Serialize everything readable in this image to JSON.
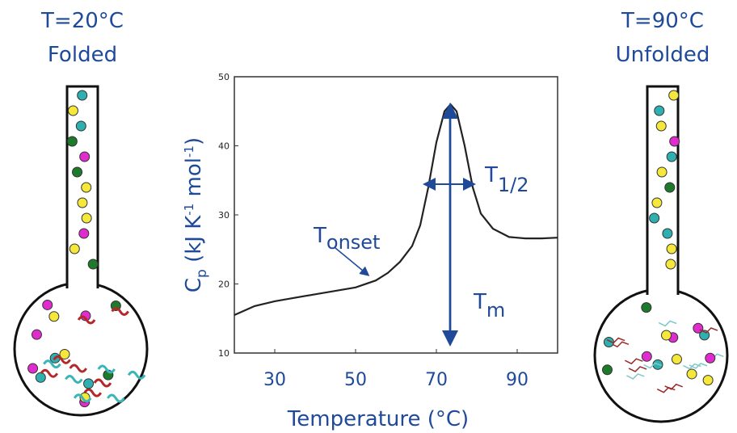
{
  "chart_data": {
    "type": "line",
    "x_label": "Temperature (°C)",
    "y_label": [
      "C",
      "p",
      " (kJ K",
      "-1",
      " mol",
      "-1",
      ")"
    ],
    "x": [
      20,
      25,
      30,
      35,
      40,
      45,
      50,
      55,
      58,
      61,
      64,
      66,
      68,
      70,
      72,
      73.5,
      75,
      77,
      79,
      81,
      84,
      88,
      92,
      96,
      100
    ],
    "values": [
      15.5,
      16.8,
      17.5,
      18,
      18.5,
      19,
      19.5,
      20.5,
      21.6,
      23.2,
      25.5,
      28.5,
      34,
      40.5,
      45,
      46,
      45,
      40,
      34,
      30.2,
      28,
      26.8,
      26.6,
      26.6,
      26.7
    ],
    "color": "#222222",
    "xlim": [
      20,
      100
    ],
    "xticks": [
      30,
      50,
      70,
      90
    ],
    "ylim": [
      10,
      50
    ],
    "yticks": [
      10,
      20,
      30,
      40,
      50
    ],
    "annotations": {
      "onset": [
        "T",
        "onset"
      ],
      "half": [
        "T",
        "1/2"
      ],
      "tm": [
        "T",
        "m"
      ]
    }
  },
  "flasks": [
    {
      "temperature": "T=20°C",
      "state": "Folded"
    },
    {
      "temperature": "T=90°C",
      "state": "Unfolded"
    }
  ]
}
